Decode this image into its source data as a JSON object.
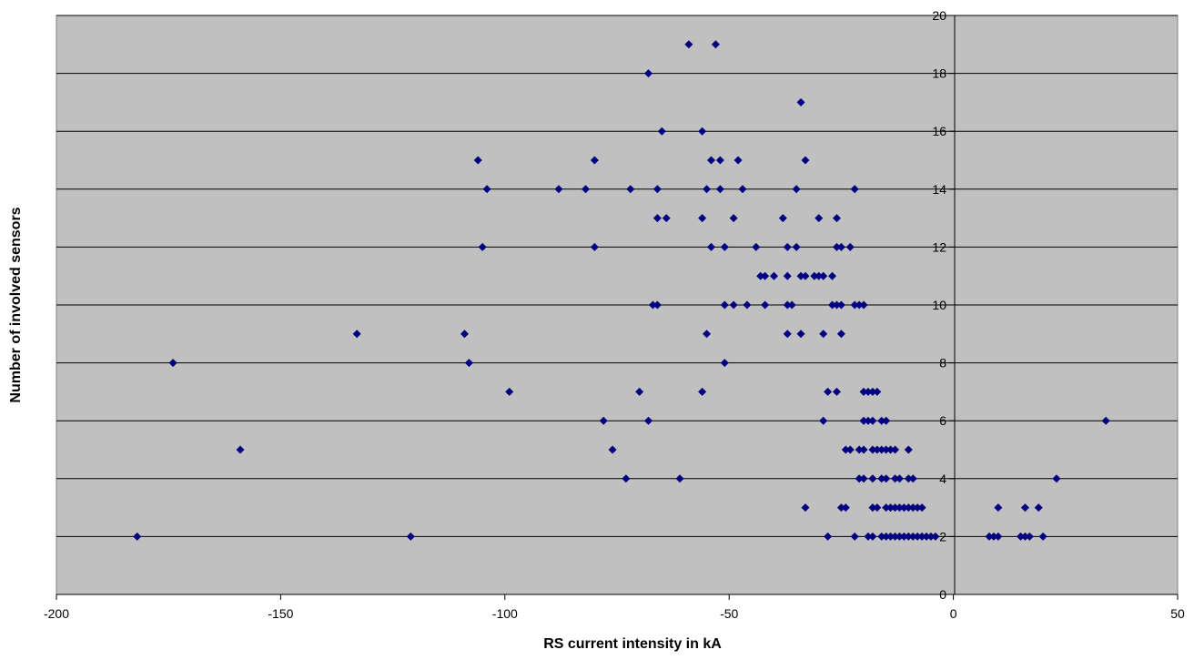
{
  "chart_data": {
    "type": "scatter",
    "title": "",
    "xlabel": "RS current intensity in kA",
    "ylabel": "Number of involved sensors",
    "xlim": [
      -200,
      50
    ],
    "ylim": [
      0,
      20
    ],
    "x_ticks": [
      -200,
      -150,
      -100,
      -50,
      0,
      50
    ],
    "y_ticks": [
      0,
      2,
      4,
      6,
      8,
      10,
      12,
      14,
      16,
      18,
      20
    ],
    "x_tick_labels": [
      "-200",
      "-150",
      "-100",
      "-50",
      "0",
      "50"
    ],
    "y_tick_labels": [
      "0",
      "2",
      "4",
      "6",
      "8",
      "10",
      "12",
      "14",
      "16",
      "18",
      "20"
    ],
    "grid": "horizontal",
    "legend": "none",
    "colors": {
      "plot_background": "#c0c0c0",
      "marker": "#000080",
      "gridline": "#000000"
    },
    "marker": "diamond",
    "series": [
      {
        "points": [
          [
            -59,
            19
          ],
          [
            -53,
            19
          ],
          [
            -68,
            18
          ],
          [
            -34,
            17
          ],
          [
            -65,
            16
          ],
          [
            -56,
            16
          ],
          [
            -106,
            15
          ],
          [
            -80,
            15
          ],
          [
            -54,
            15
          ],
          [
            -52,
            15
          ],
          [
            -48,
            15
          ],
          [
            -33,
            15
          ],
          [
            -104,
            14
          ],
          [
            -88,
            14
          ],
          [
            -82,
            14
          ],
          [
            -72,
            14
          ],
          [
            -66,
            14
          ],
          [
            -55,
            14
          ],
          [
            -52,
            14
          ],
          [
            -47,
            14
          ],
          [
            -35,
            14
          ],
          [
            -22,
            14
          ],
          [
            -66,
            13
          ],
          [
            -64,
            13
          ],
          [
            -56,
            13
          ],
          [
            -49,
            13
          ],
          [
            -38,
            13
          ],
          [
            -30,
            13
          ],
          [
            -26,
            13
          ],
          [
            -105,
            12
          ],
          [
            -80,
            12
          ],
          [
            -54,
            12
          ],
          [
            -51,
            12
          ],
          [
            -44,
            12
          ],
          [
            -37,
            12
          ],
          [
            -35,
            12
          ],
          [
            -26,
            12
          ],
          [
            -25,
            12
          ],
          [
            -23,
            12
          ],
          [
            -43,
            11
          ],
          [
            -42,
            11
          ],
          [
            -40,
            11
          ],
          [
            -37,
            11
          ],
          [
            -34,
            11
          ],
          [
            -33,
            11
          ],
          [
            -31,
            11
          ],
          [
            -30,
            11
          ],
          [
            -29,
            11
          ],
          [
            -27,
            11
          ],
          [
            -67,
            10
          ],
          [
            -66,
            10
          ],
          [
            -51,
            10
          ],
          [
            -49,
            10
          ],
          [
            -46,
            10
          ],
          [
            -42,
            10
          ],
          [
            -37,
            10
          ],
          [
            -36,
            10
          ],
          [
            -27,
            10
          ],
          [
            -26,
            10
          ],
          [
            -25,
            10
          ],
          [
            -22,
            10
          ],
          [
            -21,
            10
          ],
          [
            -20,
            10
          ],
          [
            -133,
            9
          ],
          [
            -109,
            9
          ],
          [
            -55,
            9
          ],
          [
            -37,
            9
          ],
          [
            -34,
            9
          ],
          [
            -29,
            9
          ],
          [
            -25,
            9
          ],
          [
            -174,
            8
          ],
          [
            -108,
            8
          ],
          [
            -51,
            8
          ],
          [
            -99,
            7
          ],
          [
            -70,
            7
          ],
          [
            -56,
            7
          ],
          [
            -28,
            7
          ],
          [
            -26,
            7
          ],
          [
            -20,
            7
          ],
          [
            -19,
            7
          ],
          [
            -18,
            7
          ],
          [
            -17,
            7
          ],
          [
            -78,
            6
          ],
          [
            -68,
            6
          ],
          [
            -29,
            6
          ],
          [
            -20,
            6
          ],
          [
            -19,
            6
          ],
          [
            -18,
            6
          ],
          [
            -16,
            6
          ],
          [
            -15,
            6
          ],
          [
            34,
            6
          ],
          [
            -159,
            5
          ],
          [
            -76,
            5
          ],
          [
            -24,
            5
          ],
          [
            -23,
            5
          ],
          [
            -21,
            5
          ],
          [
            -20,
            5
          ],
          [
            -18,
            5
          ],
          [
            -17,
            5
          ],
          [
            -16,
            5
          ],
          [
            -15,
            5
          ],
          [
            -14,
            5
          ],
          [
            -13,
            5
          ],
          [
            -10,
            5
          ],
          [
            -73,
            4
          ],
          [
            -61,
            4
          ],
          [
            -21,
            4
          ],
          [
            -20,
            4
          ],
          [
            -18,
            4
          ],
          [
            -16,
            4
          ],
          [
            -15,
            4
          ],
          [
            -13,
            4
          ],
          [
            -12,
            4
          ],
          [
            -10,
            4
          ],
          [
            -9,
            4
          ],
          [
            23,
            4
          ],
          [
            -33,
            3
          ],
          [
            -25,
            3
          ],
          [
            -24,
            3
          ],
          [
            -18,
            3
          ],
          [
            -17,
            3
          ],
          [
            -15,
            3
          ],
          [
            -14,
            3
          ],
          [
            -13,
            3
          ],
          [
            -12,
            3
          ],
          [
            -11,
            3
          ],
          [
            -10,
            3
          ],
          [
            -9,
            3
          ],
          [
            -8,
            3
          ],
          [
            -7,
            3
          ],
          [
            10,
            3
          ],
          [
            16,
            3
          ],
          [
            19,
            3
          ],
          [
            -182,
            2
          ],
          [
            -121,
            2
          ],
          [
            -28,
            2
          ],
          [
            -22,
            2
          ],
          [
            -19,
            2
          ],
          [
            -18,
            2
          ],
          [
            -16,
            2
          ],
          [
            -15,
            2
          ],
          [
            -14,
            2
          ],
          [
            -13,
            2
          ],
          [
            -12,
            2
          ],
          [
            -11,
            2
          ],
          [
            -10,
            2
          ],
          [
            -9,
            2
          ],
          [
            -8,
            2
          ],
          [
            -7,
            2
          ],
          [
            -6,
            2
          ],
          [
            -5,
            2
          ],
          [
            -4,
            2
          ],
          [
            8,
            2
          ],
          [
            9,
            2
          ],
          [
            10,
            2
          ],
          [
            15,
            2
          ],
          [
            16,
            2
          ],
          [
            17,
            2
          ],
          [
            20,
            2
          ]
        ]
      }
    ]
  }
}
